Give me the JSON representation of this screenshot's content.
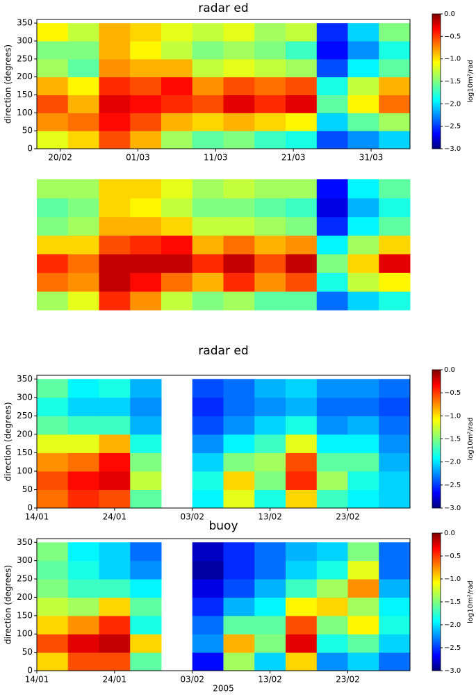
{
  "chart_data": [
    {
      "type": "heatmap",
      "title": "radar ed",
      "ylabel": "direction (degrees)",
      "xbins": [
        0,
        4,
        8,
        12,
        16,
        20,
        24,
        28,
        32,
        36,
        40,
        44,
        48
      ],
      "ybins": [
        0,
        50,
        100,
        150,
        200,
        250,
        300,
        350
      ],
      "xlim": [
        0,
        48
      ],
      "ylim": [
        0,
        360
      ],
      "xticks": [
        {
          "value": 3,
          "label": "20/02"
        },
        {
          "value": 13,
          "label": "01/03"
        },
        {
          "value": 23,
          "label": "11/03"
        },
        {
          "value": 33,
          "label": "21/03"
        },
        {
          "value": 43,
          "label": "31/03"
        }
      ],
      "yticks": [
        0,
        50,
        100,
        150,
        200,
        250,
        300,
        350
      ],
      "values": [
        [
          -1.2,
          -1.0,
          -0.6,
          -0.9,
          -1.4,
          -1.6,
          -1.5,
          -1.7,
          -1.8,
          -2.4,
          -2.2,
          -2.0
        ],
        [
          -0.8,
          -0.7,
          -0.4,
          -0.6,
          -0.9,
          -1.0,
          -0.9,
          -1.0,
          -1.1,
          -2.0,
          -1.6,
          -1.4
        ],
        [
          -0.6,
          -0.9,
          -0.3,
          -0.4,
          -0.5,
          -0.6,
          -0.3,
          -0.5,
          -0.3,
          -1.6,
          -1.1,
          -0.7
        ],
        [
          -0.9,
          -1.1,
          -0.5,
          -0.6,
          -0.4,
          -0.8,
          -0.6,
          -0.7,
          -0.6,
          -1.8,
          -1.3,
          -0.9
        ],
        [
          -1.4,
          -1.6,
          -0.8,
          -0.9,
          -0.9,
          -1.3,
          -1.2,
          -1.3,
          -1.4,
          -2.4,
          -1.9,
          -1.6
        ],
        [
          -1.5,
          -1.5,
          -0.9,
          -1.1,
          -1.3,
          -1.5,
          -1.4,
          -1.5,
          -1.7,
          -2.6,
          -2.2,
          -1.8
        ],
        [
          -1.1,
          -1.3,
          -0.9,
          -1.0,
          -1.2,
          -1.3,
          -1.2,
          -1.4,
          -1.3,
          -2.5,
          -2.0,
          -1.5
        ]
      ],
      "colorbar": {
        "lim": [
          -3,
          0
        ],
        "label": "log10m²/rad",
        "ticks": [
          {
            "value": 0,
            "label": "0.0"
          },
          {
            "value": -0.5,
            "label": "−0.5"
          },
          {
            "value": -1,
            "label": "−1.0"
          },
          {
            "value": -1.5,
            "label": "−1.5"
          },
          {
            "value": -2,
            "label": "−2.0"
          },
          {
            "value": -2.5,
            "label": "−2.5"
          },
          {
            "value": -3,
            "label": "−3.0"
          }
        ]
      }
    },
    {
      "type": "heatmap",
      "xbins": [
        0,
        4,
        8,
        12,
        16,
        20,
        24,
        28,
        32,
        36,
        40,
        44,
        48
      ],
      "ybins": [
        0,
        50,
        100,
        150,
        200,
        250,
        300,
        350
      ],
      "xlim": [
        0,
        48
      ],
      "ylim": [
        0,
        350
      ],
      "values": [
        [
          -1.4,
          -1.2,
          -0.5,
          -0.8,
          -1.3,
          -1.5,
          -1.4,
          -1.6,
          -1.6,
          -2.3,
          -2.0,
          -1.8
        ],
        [
          -0.7,
          -0.8,
          -0.2,
          -0.4,
          -0.7,
          -0.9,
          -0.5,
          -0.8,
          -0.6,
          -1.8,
          -1.3,
          -1.1
        ],
        [
          -0.5,
          -0.7,
          -0.2,
          -0.2,
          -0.2,
          -0.5,
          -0.2,
          -0.6,
          -0.2,
          -1.5,
          -1.0,
          -0.3
        ],
        [
          -1.0,
          -1.0,
          -0.6,
          -0.5,
          -0.4,
          -0.9,
          -0.7,
          -0.9,
          -0.8,
          -1.9,
          -1.4,
          -1.0
        ],
        [
          -1.5,
          -1.4,
          -0.9,
          -0.9,
          -1.0,
          -1.3,
          -1.3,
          -1.4,
          -1.5,
          -2.5,
          -1.9,
          -1.6
        ],
        [
          -1.6,
          -1.5,
          -1.0,
          -1.1,
          -1.3,
          -1.5,
          -1.5,
          -1.6,
          -1.7,
          -2.7,
          -2.1,
          -1.8
        ],
        [
          -1.4,
          -1.4,
          -1.0,
          -1.0,
          -1.2,
          -1.4,
          -1.3,
          -1.4,
          -1.4,
          -2.6,
          -1.9,
          -1.6
        ]
      ]
    },
    {
      "type": "heatmap",
      "title": "radar ed",
      "ylabel": "direction (degrees)",
      "xbins": [
        0,
        4,
        8,
        12,
        16,
        20,
        24,
        28,
        32,
        36,
        40,
        44,
        48
      ],
      "ybins": [
        0,
        50,
        100,
        150,
        200,
        250,
        300,
        350
      ],
      "xlim": [
        0,
        48
      ],
      "ylim": [
        0,
        360
      ],
      "xticks": [
        {
          "value": 0,
          "label": "14/01"
        },
        {
          "value": 10,
          "label": "24/01"
        },
        {
          "value": 20,
          "label": "03/02"
        },
        {
          "value": 30,
          "label": "13/02"
        },
        {
          "value": 40,
          "label": "23/02"
        }
      ],
      "yticks": [
        0,
        50,
        100,
        150,
        200,
        250,
        300,
        350
      ],
      "values": [
        [
          -0.7,
          -0.5,
          -0.6,
          -1.6,
          null,
          -1.9,
          -1.2,
          -1.8,
          -1.0,
          -1.7,
          -1.9,
          -2.0
        ],
        [
          -0.6,
          -0.4,
          -0.3,
          -1.3,
          null,
          -1.8,
          -1.0,
          -1.5,
          -0.5,
          -1.4,
          -1.8,
          -2.0
        ],
        [
          -0.8,
          -0.7,
          -0.4,
          -1.5,
          null,
          -2.0,
          -1.5,
          -1.4,
          -0.6,
          -1.6,
          -1.6,
          -2.1
        ],
        [
          -1.2,
          -1.2,
          -0.9,
          -1.8,
          null,
          -2.2,
          -1.9,
          -1.7,
          -1.2,
          -1.9,
          -1.9,
          -2.2
        ],
        [
          -1.6,
          -1.7,
          -1.7,
          -2.1,
          null,
          -2.4,
          -2.2,
          -2.0,
          -1.8,
          -2.2,
          -2.1,
          -2.3
        ],
        [
          -1.8,
          -2.0,
          -2.0,
          -2.2,
          null,
          -2.5,
          -2.3,
          -2.2,
          -2.1,
          -2.3,
          -2.3,
          -2.4
        ],
        [
          -1.6,
          -1.9,
          -1.8,
          -2.1,
          null,
          -2.4,
          -2.3,
          -2.1,
          -2.0,
          -2.2,
          -2.2,
          -2.3
        ]
      ],
      "colorbar": {
        "lim": [
          -3,
          0
        ],
        "label": "log10m²/rad",
        "ticks": [
          {
            "value": 0,
            "label": "0.0"
          },
          {
            "value": -0.5,
            "label": "−0.5"
          },
          {
            "value": -1,
            "label": "−1.0"
          },
          {
            "value": -1.5,
            "label": "−1.5"
          },
          {
            "value": -2,
            "label": "−2.0"
          },
          {
            "value": -2.5,
            "label": "−2.5"
          },
          {
            "value": -3,
            "label": "−3.0"
          }
        ]
      }
    },
    {
      "type": "heatmap",
      "title": "buoy",
      "ylabel": "direction (degrees)",
      "xlabel": "2005",
      "xbins": [
        0,
        4,
        8,
        12,
        16,
        20,
        24,
        28,
        32,
        36,
        40,
        44,
        48
      ],
      "ybins": [
        0,
        50,
        100,
        150,
        200,
        250,
        300,
        350
      ],
      "xlim": [
        0,
        48
      ],
      "ylim": [
        0,
        360
      ],
      "xticks": [
        {
          "value": 0,
          "label": "14/01"
        },
        {
          "value": 10,
          "label": "24/01"
        },
        {
          "value": 20,
          "label": "03/02"
        },
        {
          "value": 30,
          "label": "13/02"
        },
        {
          "value": 40,
          "label": "23/02"
        }
      ],
      "yticks": [
        0,
        50,
        100,
        150,
        200,
        250,
        300,
        350
      ],
      "values": [
        [
          -1.0,
          -0.6,
          -0.6,
          -1.6,
          null,
          -2.6,
          -1.4,
          -2.0,
          -1.0,
          -2.2,
          -2.0,
          -2.3
        ],
        [
          -0.6,
          -0.3,
          -0.2,
          -1.0,
          null,
          -2.2,
          -0.9,
          -1.5,
          -0.3,
          -1.8,
          -1.6,
          -2.0
        ],
        [
          -1.0,
          -0.8,
          -0.5,
          -1.8,
          null,
          -2.3,
          -1.6,
          -1.6,
          -0.6,
          -1.5,
          -1.1,
          -1.8
        ],
        [
          -1.3,
          -1.4,
          -1.0,
          -1.6,
          null,
          -2.5,
          -2.1,
          -1.9,
          -1.1,
          -1.0,
          -1.4,
          -1.9
        ],
        [
          -1.5,
          -1.7,
          -1.7,
          -1.9,
          null,
          -2.7,
          -2.4,
          -2.1,
          -1.7,
          -1.4,
          -0.8,
          -2.1
        ],
        [
          -1.6,
          -1.8,
          -2.0,
          -2.2,
          null,
          -2.9,
          -2.5,
          -2.3,
          -2.0,
          -1.8,
          -1.2,
          -2.3
        ],
        [
          -1.5,
          -1.9,
          -2.0,
          -2.3,
          null,
          -2.8,
          -2.5,
          -2.3,
          -2.1,
          -2.0,
          -1.5,
          -2.3
        ]
      ],
      "colorbar": {
        "lim": [
          -3,
          0
        ],
        "label": "log10m²/rad",
        "ticks": [
          {
            "value": 0,
            "label": "0.0"
          },
          {
            "value": -0.5,
            "label": "−0.5"
          },
          {
            "value": -1,
            "label": "−1.0"
          },
          {
            "value": -1.5,
            "label": "−1.5"
          },
          {
            "value": -2,
            "label": "−2.0"
          },
          {
            "value": -2.5,
            "label": "−2.5"
          },
          {
            "value": -3,
            "label": "−3.0"
          }
        ]
      }
    }
  ]
}
